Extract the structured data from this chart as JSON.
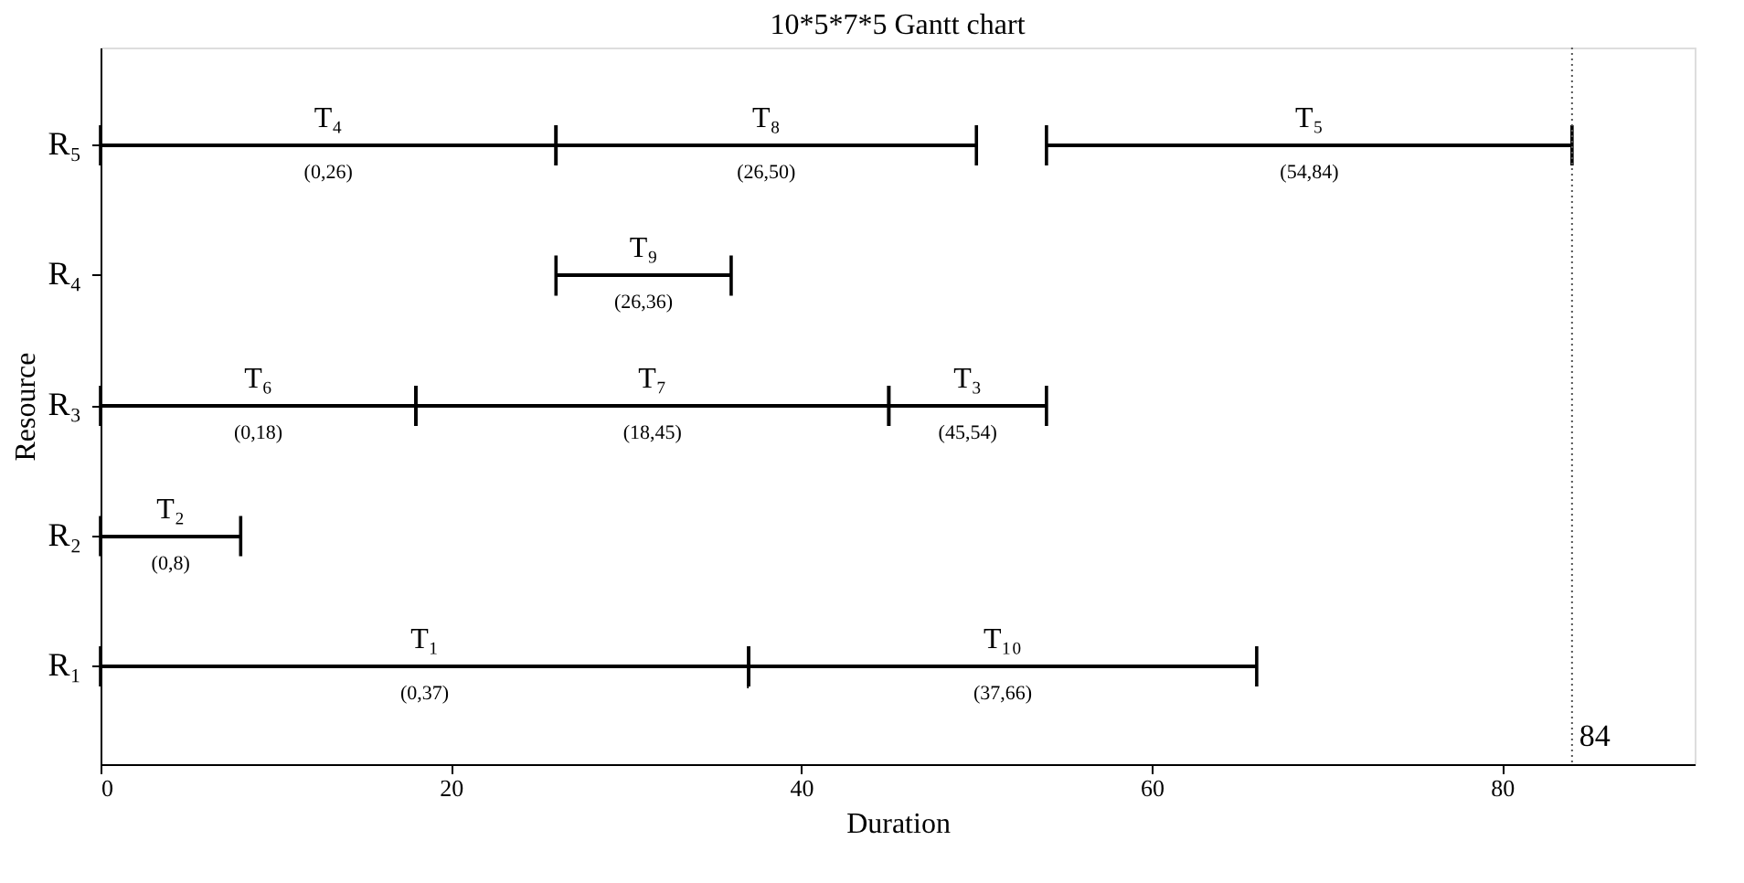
{
  "chart_data": {
    "type": "bar",
    "orientation": "horizontal",
    "title": "10*5*7*5 Gantt chart",
    "xlabel": "Duration",
    "ylabel": "Resource",
    "categories": [
      "R₅",
      "R₄",
      "R₃",
      "R₂",
      "R₁"
    ],
    "series": [
      {
        "name": "T₁",
        "color": "#000000",
        "base": [
          null,
          null,
          null,
          null,
          0
        ],
        "values": [
          null,
          null,
          null,
          null,
          37
        ]
      },
      {
        "name": "T₂",
        "color": "#000000",
        "base": [
          null,
          null,
          null,
          0,
          null
        ],
        "values": [
          null,
          null,
          null,
          8,
          null
        ]
      },
      {
        "name": "T₃",
        "color": "#000000",
        "base": [
          null,
          null,
          45,
          null,
          null
        ],
        "values": [
          null,
          null,
          9,
          null,
          null
        ]
      },
      {
        "name": "T₄",
        "color": "#000000",
        "base": [
          0,
          null,
          null,
          null,
          null
        ],
        "values": [
          26,
          null,
          null,
          null,
          null
        ]
      },
      {
        "name": "T₅",
        "color": "#000000",
        "base": [
          54,
          null,
          null,
          null,
          null
        ],
        "values": [
          30,
          null,
          null,
          null,
          null
        ]
      },
      {
        "name": "T₆",
        "color": "#000000",
        "base": [
          null,
          null,
          0,
          null,
          null
        ],
        "values": [
          null,
          null,
          18,
          null,
          null
        ]
      },
      {
        "name": "T₇",
        "color": "#000000",
        "base": [
          null,
          null,
          18,
          null,
          null
        ],
        "values": [
          null,
          null,
          27,
          null,
          null
        ]
      },
      {
        "name": "T₈",
        "color": "#000000",
        "base": [
          26,
          null,
          null,
          null,
          null
        ],
        "values": [
          24,
          null,
          null,
          null,
          null
        ]
      },
      {
        "name": "T₉",
        "color": "#000000",
        "base": [
          null,
          26,
          null,
          null,
          null
        ],
        "values": [
          null,
          10,
          null,
          null,
          null
        ]
      },
      {
        "name": "T₁₀",
        "color": "#000000",
        "base": [
          null,
          null,
          null,
          null,
          37
        ],
        "values": [
          null,
          null,
          null,
          null,
          29
        ]
      }
    ],
    "annotations": [
      "(0,37)",
      "(0,8)",
      "(45,54)",
      "(0,26)",
      "(54,84)",
      "(0,18)",
      "(18,45)",
      "(26,50)",
      "(26,36)",
      "(37,66)"
    ],
    "xlim": [
      0,
      91
    ],
    "xticks": [
      0,
      20,
      40,
      60,
      80
    ],
    "ref_lines": [
      {
        "axis": "x",
        "value": 84,
        "label": "84",
        "color": "#555555",
        "line_style": "dotted"
      }
    ],
    "grid": false,
    "legend": false
  }
}
